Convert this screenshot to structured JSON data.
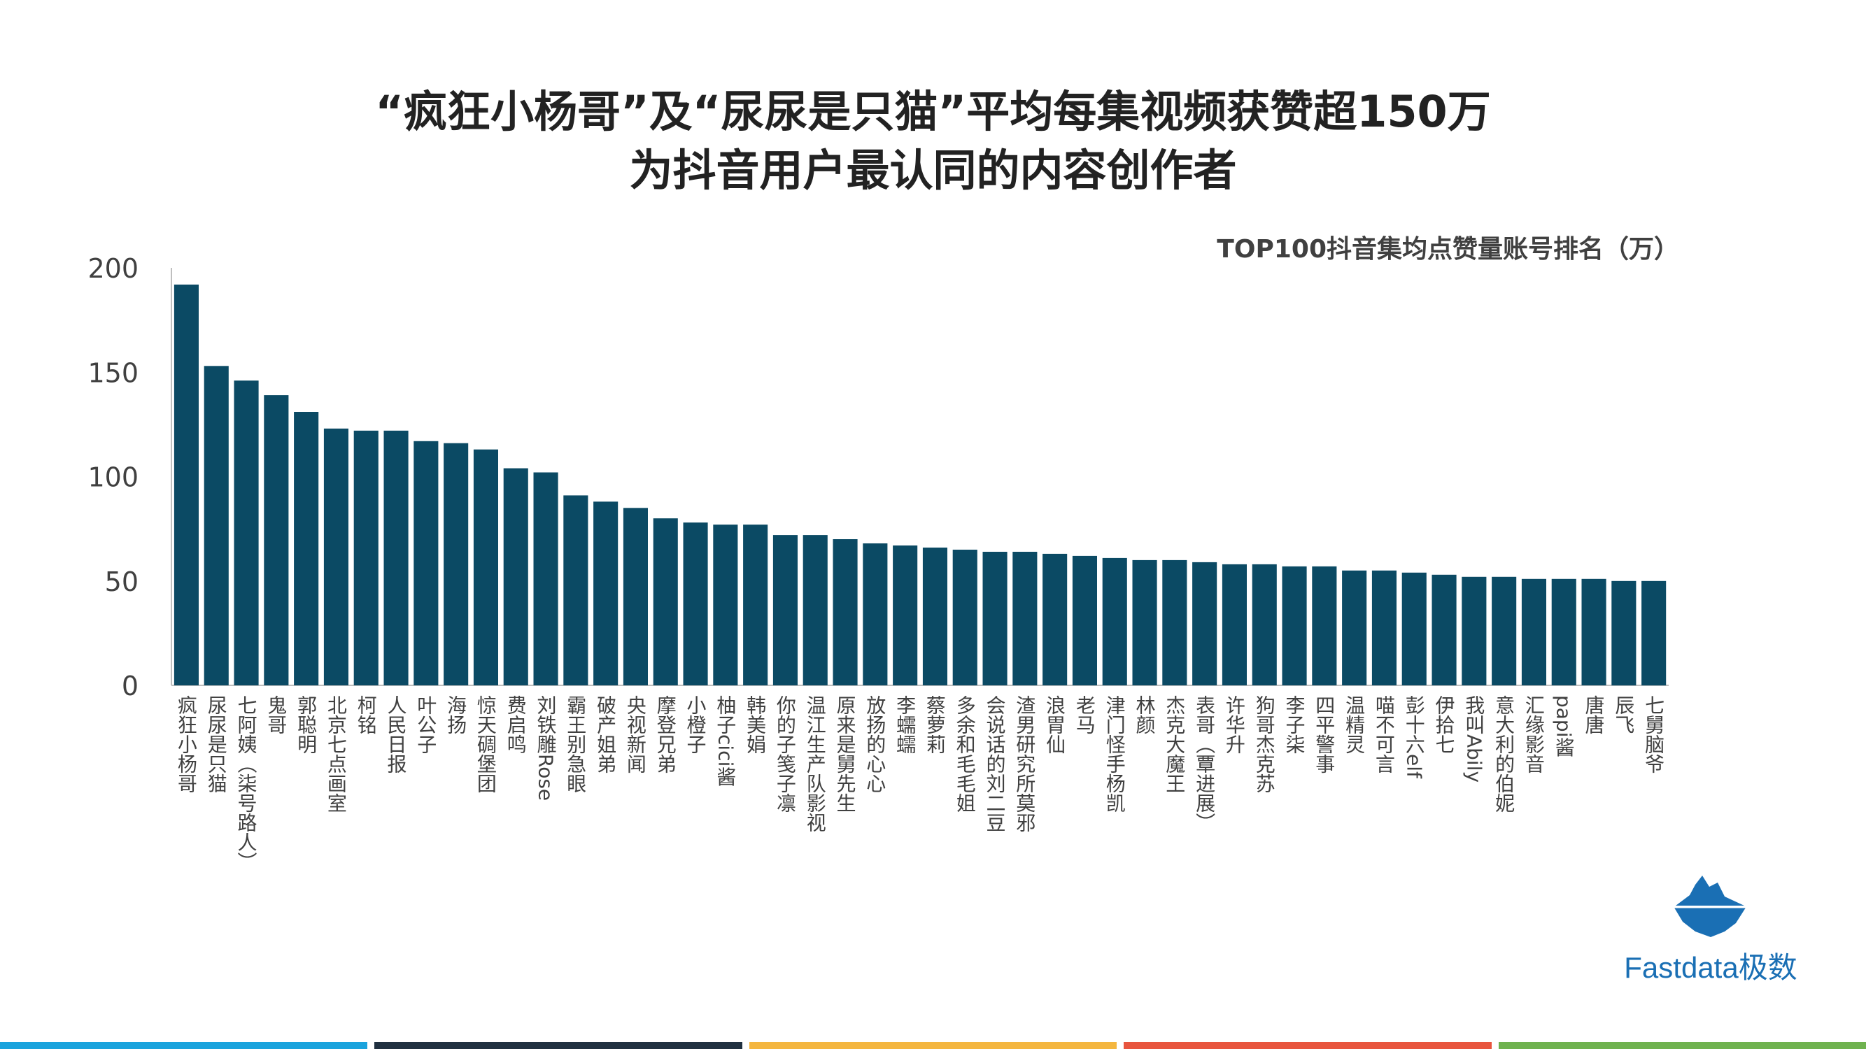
{
  "title_line1": "“疯狂小杨哥”及“尿尿是只猫”平均每集视频获赞超150万",
  "title_line2": "为抖音用户最认同的内容创作者",
  "logo_text": "Fastdata极数",
  "colors": {
    "bar": "#0b4a64",
    "axis": "#bfbfbf",
    "text": "#404040",
    "title": "#222222",
    "logo": "#1a6fb4",
    "bottom_bar": [
      "#1aa3dd",
      "#203040",
      "#f4b63f",
      "#e8553e",
      "#6fb24f"
    ]
  },
  "chart_data": {
    "type": "bar",
    "title": "TOP100抖音集均点赞量账号排名（万）",
    "xlabel": "",
    "ylabel": "",
    "ylim": [
      0,
      200
    ],
    "yticks": [
      0,
      50,
      100,
      150,
      200
    ],
    "grid": false,
    "categories": [
      "疯狂小杨哥",
      "尿尿是只猫",
      "七阿姨（柒号路人）",
      "鬼哥",
      "郭聪明",
      "北京七点画室",
      "柯铭",
      "人民日报",
      "叶公子",
      "海扬",
      "惊天碉堡团",
      "费启鸣",
      "刘铁雕Rose",
      "霸王别急眼",
      "破产姐弟",
      "央视新闻",
      "摩登兄弟",
      "小橙子",
      "柚子cici酱",
      "韩美娟",
      "你的子笺子凛",
      "温江生产队影视",
      "原来是舅先生",
      "放扬的心心",
      "李蠕蠕",
      "蔡萝莉",
      "多余和毛毛姐",
      "会说话的刘二豆",
      "渣男研究所莫邪",
      "浪胃仙",
      "老马",
      "津门怪手杨凯",
      "林颜",
      "杰克大魔王",
      "表哥（覃进展）",
      "许华升",
      "狗哥杰克苏",
      "李子柒",
      "四平警事",
      "温精灵",
      "喵不可言",
      "彭十六elf",
      "伊拾七",
      "我叫Abily",
      "意大利的伯妮",
      "汇缘影音",
      "papi酱",
      "唐唐",
      "辰飞",
      "七舅脑爷"
    ],
    "values": [
      192,
      153,
      146,
      139,
      131,
      123,
      122,
      122,
      117,
      116,
      113,
      104,
      102,
      91,
      88,
      85,
      80,
      78,
      77,
      77,
      72,
      72,
      70,
      68,
      67,
      66,
      65,
      64,
      64,
      63,
      62,
      61,
      60,
      60,
      59,
      58,
      58,
      57,
      57,
      55,
      55,
      54,
      53,
      52,
      52,
      51,
      51,
      51,
      50,
      50
    ]
  }
}
